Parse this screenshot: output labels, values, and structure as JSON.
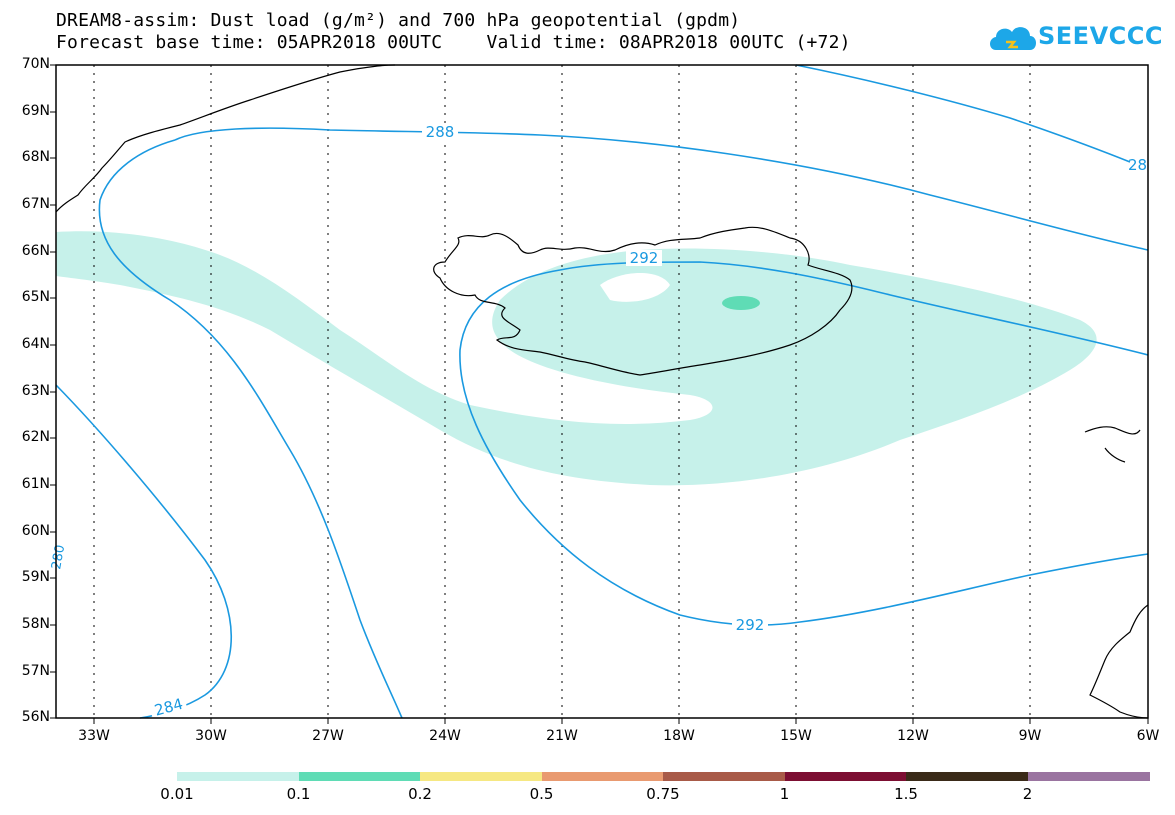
{
  "title_line1": "DREAM8-assim: Dust load (g/m²) and 700 hPa geopotential (gpdm)",
  "title_line2": "Forecast base time: 05APR2018 00UTC    Valid time: 08APR2018 00UTC (+72)",
  "logo_text": "SEEVCCC",
  "lat_labels": [
    "70N",
    "69N",
    "68N",
    "67N",
    "66N",
    "65N",
    "64N",
    "63N",
    "62N",
    "61N",
    "60N",
    "59N",
    "58N",
    "57N",
    "56N"
  ],
  "lon_labels": [
    "33W",
    "30W",
    "27W",
    "24W",
    "21W",
    "18W",
    "15W",
    "12W",
    "9W",
    "6W"
  ],
  "contour_labels": {
    "c288": "288",
    "c292a": "292",
    "c292b": "292",
    "c284": "284",
    "c28_partial": "28",
    "c280_partial": "280"
  },
  "colorbar": {
    "labels": [
      "0.01",
      "0.1",
      "0.2",
      "0.5",
      "0.75",
      "1",
      "1.5",
      "2"
    ],
    "colors": [
      "#c6f1ea",
      "#5fdcb5",
      "#f6e882",
      "#e99a70",
      "#a85a48",
      "#7c0e32",
      "#3a2a18",
      "#9a74a0"
    ]
  },
  "colors": {
    "contour": "#1a99e0",
    "dust_low": "#c6f1ea",
    "dust_mid": "#5fdcb5",
    "coast": "#000000",
    "grid": "#000000"
  }
}
